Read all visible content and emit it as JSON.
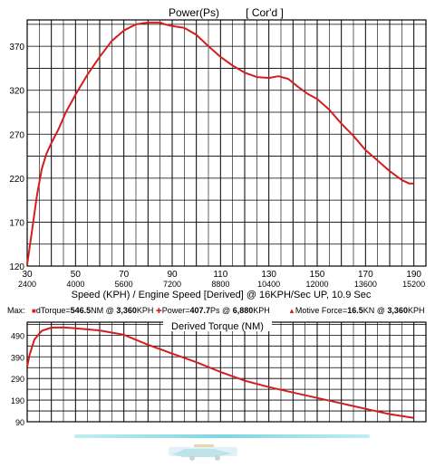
{
  "chart_data": [
    {
      "type": "line",
      "title": "Power(Ps)",
      "subtitle": "[ Cor'd ]",
      "xlabel": "Speed (KPH) / Engine Speed [Derived] @ 16KPH/Sec UP, 10.9 Sec",
      "ylabel": "",
      "xlim": [
        30,
        195
      ],
      "ylim": [
        120,
        400
      ],
      "x_ticks": [
        30,
        50,
        70,
        90,
        110,
        130,
        150,
        170,
        190
      ],
      "x_ticks_secondary": [
        "2400",
        "4000",
        "5600",
        "7200",
        "8800",
        "10400",
        "12000",
        "13600",
        "15200"
      ],
      "y_ticks": [
        120,
        170,
        220,
        270,
        320,
        370
      ],
      "grid": true,
      "series": [
        {
          "name": "",
          "color": "#d41e1e",
          "x": [
            30,
            32,
            34,
            36,
            38,
            40,
            43,
            46,
            50,
            55,
            60,
            65,
            70,
            75,
            80,
            85,
            87,
            90,
            95,
            100,
            105,
            110,
            115,
            120,
            125,
            130,
            134,
            138,
            142,
            146,
            150,
            155,
            160,
            165,
            170,
            175,
            180,
            185,
            188,
            190
          ],
          "y": [
            122,
            160,
            200,
            230,
            248,
            260,
            276,
            295,
            315,
            338,
            358,
            376,
            388,
            395,
            397,
            397,
            395,
            393,
            391,
            383,
            370,
            358,
            348,
            340,
            335,
            334,
            336,
            333,
            324,
            316,
            310,
            298,
            282,
            268,
            252,
            240,
            228,
            218,
            214,
            214
          ]
        }
      ]
    },
    {
      "type": "line",
      "title": "Derived Torque (NM)",
      "xlabel": "",
      "ylabel": "",
      "xlim": [
        30,
        195
      ],
      "ylim": [
        90,
        550
      ],
      "y_ticks": [
        90,
        190,
        290,
        390,
        490
      ],
      "grid": true,
      "series": [
        {
          "name": "",
          "color": "#d41e1e",
          "x": [
            30,
            31,
            33,
            36,
            40,
            45,
            50,
            60,
            70,
            80,
            90,
            100,
            110,
            120,
            130,
            140,
            150,
            160,
            170,
            180,
            190
          ],
          "y": [
            345,
            400,
            470,
            510,
            525,
            526,
            522,
            512,
            492,
            446,
            405,
            365,
            320,
            280,
            250,
            225,
            200,
            175,
            150,
            125,
            108
          ]
        }
      ]
    }
  ],
  "max_bar": {
    "label": "Max:",
    "torque": {
      "label": "dTorque=",
      "value": "546.5",
      "unit": "NM",
      "at": "@",
      "speed": "3,360",
      "speed_unit": "KPH"
    },
    "power": {
      "label": "Power=",
      "value": "407.7",
      "unit": "Ps",
      "at": "@",
      "speed": "6,880",
      "speed_unit": "KPH"
    },
    "force": {
      "label": "Motive Force=",
      "value": "16.5",
      "unit": "KN",
      "at": "@",
      "speed": "3,360",
      "speed_unit": "KPH"
    },
    "colors": {
      "torque": "#d41e1e",
      "power": "#d41e1e",
      "force": "#d41e1e"
    }
  }
}
